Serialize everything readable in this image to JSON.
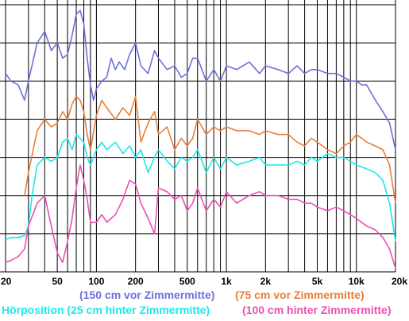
{
  "chart_data": {
    "type": "line",
    "title": "",
    "xlabel": "",
    "ylabel": "",
    "x_scale": "log",
    "xlim": [
      20,
      20000
    ],
    "ylim": [
      0,
      7
    ],
    "grid": true,
    "y_ticks": [
      0,
      1,
      2,
      3,
      4,
      5,
      6,
      7
    ],
    "x_minor_ticks": [
      30,
      40,
      60,
      70,
      80,
      90,
      300,
      400,
      600,
      700,
      800,
      900,
      3000,
      4000,
      6000,
      7000,
      8000,
      9000
    ],
    "x_ticks": [
      {
        "value": 20,
        "label": "20"
      },
      {
        "value": 50,
        "label": "50"
      },
      {
        "value": 100,
        "label": "100"
      },
      {
        "value": 200,
        "label": "200"
      },
      {
        "value": 500,
        "label": "500"
      },
      {
        "value": 1000,
        "label": "1k"
      },
      {
        "value": 2000,
        "label": "2k"
      },
      {
        "value": 5000,
        "label": "5k"
      },
      {
        "value": 10000,
        "label": "10k"
      },
      {
        "value": 20000,
        "label": "20k"
      }
    ],
    "legend_placement": "bottom",
    "series": [
      {
        "name": "(150 cm vor Zimmermitte)",
        "color": "#6f6fdc",
        "points": [
          [
            20,
            5.2
          ],
          [
            22,
            5.0
          ],
          [
            25,
            4.9
          ],
          [
            28,
            4.5
          ],
          [
            30,
            5.0
          ],
          [
            35,
            6.0
          ],
          [
            40,
            6.3
          ],
          [
            45,
            5.8
          ],
          [
            50,
            6.0
          ],
          [
            55,
            5.6
          ],
          [
            60,
            5.7
          ],
          [
            65,
            6.2
          ],
          [
            70,
            6.75
          ],
          [
            75,
            6.85
          ],
          [
            80,
            6.5
          ],
          [
            85,
            5.6
          ],
          [
            90,
            4.9
          ],
          [
            95,
            4.5
          ],
          [
            100,
            4.8
          ],
          [
            110,
            5.0
          ],
          [
            120,
            5.1
          ],
          [
            130,
            5.6
          ],
          [
            140,
            5.3
          ],
          [
            150,
            5.5
          ],
          [
            165,
            5.3
          ],
          [
            180,
            5.7
          ],
          [
            200,
            6.0
          ],
          [
            220,
            5.4
          ],
          [
            250,
            5.2
          ],
          [
            280,
            5.8
          ],
          [
            300,
            5.6
          ],
          [
            350,
            5.3
          ],
          [
            400,
            5.4
          ],
          [
            450,
            5.1
          ],
          [
            500,
            5.2
          ],
          [
            550,
            5.6
          ],
          [
            600,
            5.6
          ],
          [
            700,
            5.0
          ],
          [
            800,
            5.3
          ],
          [
            900,
            5.0
          ],
          [
            1000,
            5.4
          ],
          [
            1200,
            5.3
          ],
          [
            1500,
            5.5
          ],
          [
            1800,
            5.2
          ],
          [
            2000,
            5.4
          ],
          [
            2500,
            5.3
          ],
          [
            3000,
            5.2
          ],
          [
            3500,
            5.4
          ],
          [
            4000,
            5.2
          ],
          [
            4500,
            5.3
          ],
          [
            5000,
            5.3
          ],
          [
            6000,
            5.2
          ],
          [
            7000,
            5.2
          ],
          [
            8000,
            5.1
          ],
          [
            9000,
            5.0
          ],
          [
            10000,
            5.0
          ],
          [
            11000,
            4.9
          ],
          [
            12000,
            4.9
          ],
          [
            14000,
            4.5
          ],
          [
            16000,
            4.2
          ],
          [
            18000,
            3.9
          ],
          [
            20000,
            3.2
          ]
        ]
      },
      {
        "name": "(75 cm vor Zimmermitte)",
        "color": "#ea7f38",
        "points": [
          [
            28,
            2.0
          ],
          [
            30,
            2.6
          ],
          [
            35,
            3.7
          ],
          [
            40,
            4.0
          ],
          [
            45,
            3.8
          ],
          [
            50,
            3.9
          ],
          [
            55,
            4.2
          ],
          [
            60,
            4.0
          ],
          [
            65,
            4.4
          ],
          [
            70,
            4.6
          ],
          [
            75,
            4.5
          ],
          [
            80,
            4.2
          ],
          [
            85,
            3.6
          ],
          [
            90,
            3.2
          ],
          [
            100,
            4.1
          ],
          [
            110,
            4.5
          ],
          [
            120,
            4.3
          ],
          [
            140,
            4.0
          ],
          [
            160,
            4.3
          ],
          [
            180,
            4.1
          ],
          [
            200,
            4.6
          ],
          [
            220,
            3.4
          ],
          [
            250,
            3.9
          ],
          [
            280,
            4.2
          ],
          [
            300,
            3.6
          ],
          [
            350,
            3.8
          ],
          [
            400,
            3.2
          ],
          [
            450,
            3.5
          ],
          [
            500,
            3.3
          ],
          [
            550,
            3.5
          ],
          [
            600,
            4.0
          ],
          [
            700,
            3.6
          ],
          [
            800,
            3.8
          ],
          [
            900,
            3.7
          ],
          [
            1000,
            3.8
          ],
          [
            1200,
            3.7
          ],
          [
            1500,
            3.7
          ],
          [
            1800,
            3.6
          ],
          [
            2000,
            3.7
          ],
          [
            2500,
            3.6
          ],
          [
            3000,
            3.6
          ],
          [
            3500,
            3.4
          ],
          [
            4000,
            3.3
          ],
          [
            4500,
            3.5
          ],
          [
            5000,
            3.4
          ],
          [
            6000,
            3.2
          ],
          [
            7000,
            3.1
          ],
          [
            8000,
            3.3
          ],
          [
            9000,
            3.4
          ],
          [
            10000,
            3.6
          ],
          [
            11000,
            3.5
          ],
          [
            12000,
            3.4
          ],
          [
            14000,
            3.3
          ],
          [
            16000,
            3.2
          ],
          [
            18000,
            2.8
          ],
          [
            20000,
            1.8
          ]
        ]
      },
      {
        "name": "Hörposition (25 cm hinter Zimmermitte)",
        "color": "#1ee8e8",
        "points": [
          [
            20,
            0.85
          ],
          [
            22,
            0.9
          ],
          [
            25,
            0.9
          ],
          [
            28,
            0.95
          ],
          [
            30,
            1.2
          ],
          [
            32,
            2.0
          ],
          [
            35,
            2.8
          ],
          [
            40,
            3.0
          ],
          [
            45,
            2.9
          ],
          [
            50,
            3.0
          ],
          [
            55,
            3.4
          ],
          [
            60,
            3.5
          ],
          [
            65,
            3.2
          ],
          [
            70,
            3.6
          ],
          [
            75,
            3.5
          ],
          [
            80,
            3.4
          ],
          [
            85,
            3.0
          ],
          [
            90,
            2.8
          ],
          [
            100,
            3.2
          ],
          [
            110,
            3.4
          ],
          [
            120,
            3.2
          ],
          [
            140,
            3.4
          ],
          [
            160,
            3.1
          ],
          [
            180,
            3.3
          ],
          [
            200,
            3.0
          ],
          [
            220,
            3.2
          ],
          [
            250,
            2.6
          ],
          [
            280,
            3.0
          ],
          [
            300,
            3.2
          ],
          [
            350,
            2.9
          ],
          [
            400,
            2.7
          ],
          [
            450,
            3.0
          ],
          [
            500,
            2.9
          ],
          [
            550,
            3.0
          ],
          [
            600,
            3.2
          ],
          [
            700,
            2.6
          ],
          [
            800,
            3.0
          ],
          [
            900,
            2.7
          ],
          [
            1000,
            3.0
          ],
          [
            1200,
            2.8
          ],
          [
            1500,
            2.9
          ],
          [
            1800,
            3.0
          ],
          [
            2000,
            2.8
          ],
          [
            2500,
            2.8
          ],
          [
            3000,
            2.8
          ],
          [
            3500,
            2.9
          ],
          [
            4000,
            2.8
          ],
          [
            4500,
            3.0
          ],
          [
            5000,
            2.9
          ],
          [
            6000,
            3.1
          ],
          [
            7000,
            3.0
          ],
          [
            8000,
            3.0
          ],
          [
            9000,
            2.9
          ],
          [
            10000,
            2.8
          ],
          [
            12000,
            2.7
          ],
          [
            14000,
            2.6
          ],
          [
            16000,
            2.4
          ],
          [
            18000,
            1.8
          ],
          [
            20000,
            0.8
          ]
        ]
      },
      {
        "name": "(100 cm hinter Zimmermitte)",
        "color": "#ec4fb4",
        "points": [
          [
            20,
            0.25
          ],
          [
            22,
            0.3
          ],
          [
            25,
            0.4
          ],
          [
            28,
            0.6
          ],
          [
            30,
            1.2
          ],
          [
            35,
            1.8
          ],
          [
            40,
            2.0
          ],
          [
            45,
            1.2
          ],
          [
            50,
            0.5
          ],
          [
            55,
            0.25
          ],
          [
            60,
            0.8
          ],
          [
            65,
            1.4
          ],
          [
            70,
            2.2
          ],
          [
            75,
            2.8
          ],
          [
            80,
            2.4
          ],
          [
            85,
            1.9
          ],
          [
            90,
            1.3
          ],
          [
            100,
            1.3
          ],
          [
            110,
            1.5
          ],
          [
            120,
            1.3
          ],
          [
            140,
            1.5
          ],
          [
            160,
            1.9
          ],
          [
            180,
            2.4
          ],
          [
            200,
            2.3
          ],
          [
            220,
            1.8
          ],
          [
            250,
            1.4
          ],
          [
            280,
            1.0
          ],
          [
            300,
            2.2
          ],
          [
            350,
            2.1
          ],
          [
            400,
            1.9
          ],
          [
            450,
            2.0
          ],
          [
            500,
            1.6
          ],
          [
            550,
            1.8
          ],
          [
            600,
            2.2
          ],
          [
            700,
            1.6
          ],
          [
            800,
            1.9
          ],
          [
            900,
            1.7
          ],
          [
            1000,
            2.1
          ],
          [
            1200,
            1.8
          ],
          [
            1500,
            2.0
          ],
          [
            1800,
            2.1
          ],
          [
            2000,
            2.0
          ],
          [
            2500,
            2.0
          ],
          [
            3000,
            1.9
          ],
          [
            3500,
            1.9
          ],
          [
            4000,
            1.8
          ],
          [
            4500,
            1.8
          ],
          [
            5000,
            1.7
          ],
          [
            6000,
            1.6
          ],
          [
            7000,
            1.7
          ],
          [
            8000,
            1.6
          ],
          [
            9000,
            1.5
          ],
          [
            10000,
            1.4
          ],
          [
            12000,
            1.2
          ],
          [
            14000,
            1.1
          ],
          [
            16000,
            0.9
          ],
          [
            18000,
            0.6
          ],
          [
            20000,
            0.1
          ]
        ]
      }
    ]
  },
  "legend": {
    "line1_left": "(150 cm vor Zimmermitte)",
    "line1_right": "(75 cm vor Zimmermitte)",
    "line2_left": "Hörposition (25 cm hinter Zimmermitte)",
    "line2_right": "(100 cm hinter Zimmermitte)"
  },
  "colors": {
    "grid": "#000000",
    "legend_150": "#6f6fdc",
    "legend_75": "#ea7f38",
    "legend_hoer": "#1ee8e8",
    "legend_100": "#ec4fb4"
  }
}
